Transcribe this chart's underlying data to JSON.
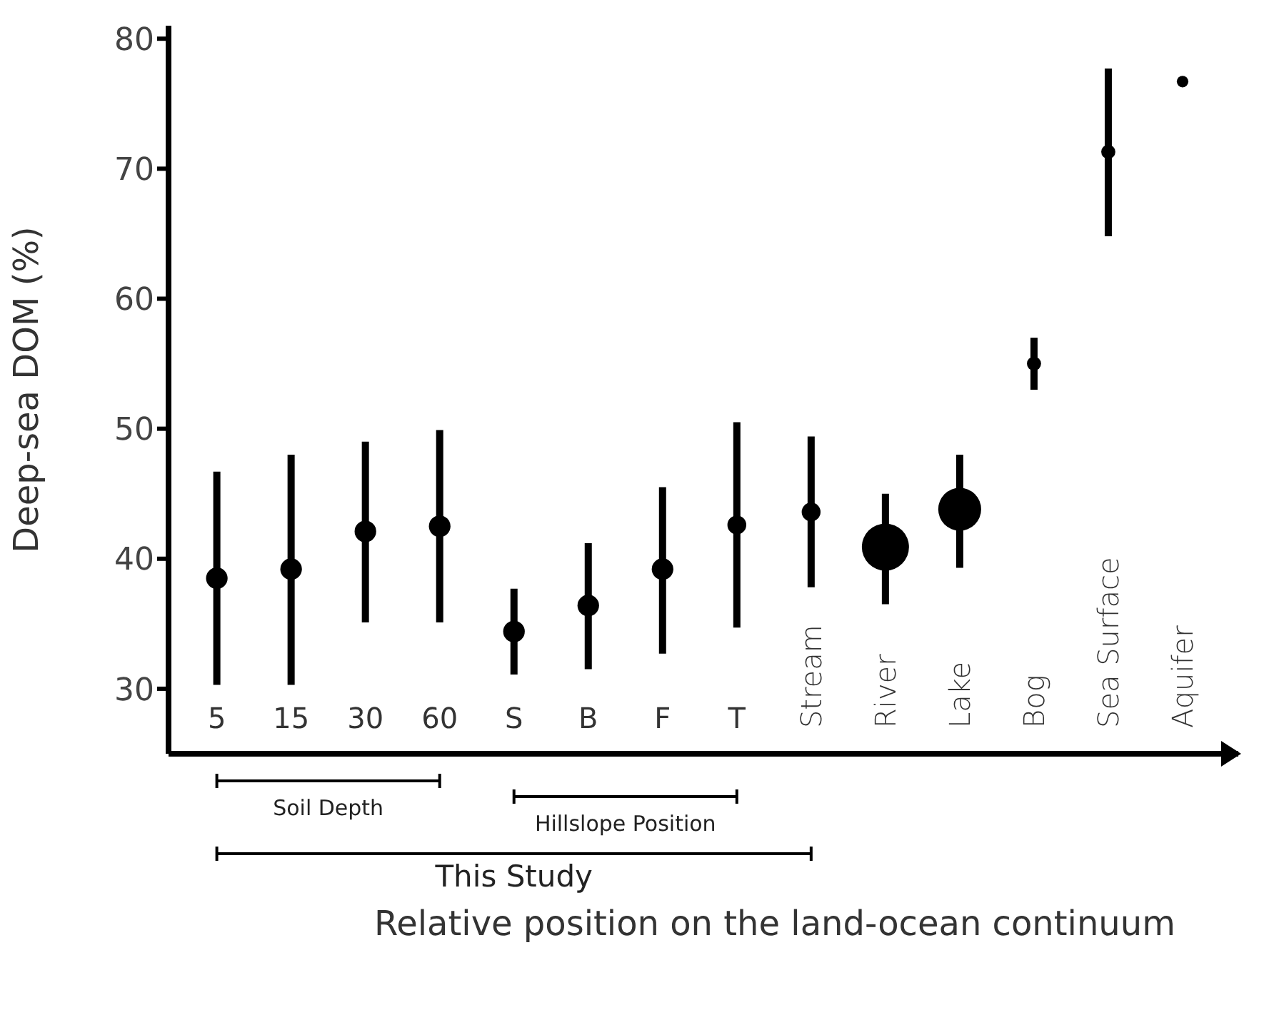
{
  "chart_data": {
    "type": "bubble",
    "ylabel": "Deep-sea DOM (%)",
    "xlabel": "Relative position on the land-ocean continuum",
    "categories": [
      "5",
      "15",
      "30",
      "60",
      "S",
      "B",
      "F",
      "T",
      "Stream",
      "River",
      "Lake",
      "Bog",
      "Sea Surface",
      "Aquifer"
    ],
    "values": [
      38.5,
      39.2,
      42.1,
      42.5,
      34.4,
      36.4,
      39.2,
      42.6,
      43.6,
      40.9,
      43.8,
      55.0,
      71.3,
      76.7
    ],
    "errors": [
      [
        30.3,
        46.7
      ],
      [
        30.3,
        48.0
      ],
      [
        35.1,
        49.0
      ],
      [
        35.1,
        49.9
      ],
      [
        31.1,
        37.7
      ],
      [
        31.5,
        41.2
      ],
      [
        32.7,
        45.5
      ],
      [
        34.7,
        50.5
      ],
      [
        37.8,
        49.4
      ],
      [
        36.5,
        45.0
      ],
      [
        39.3,
        48.0
      ],
      [
        53.0,
        57.0
      ],
      [
        64.8,
        77.7
      ],
      null
    ],
    "sizes": [
      0.21,
      0.21,
      0.21,
      0.21,
      0.21,
      0.21,
      0.21,
      0.16,
      0.16,
      1,
      0.83,
      0.09,
      0.09,
      0.06
    ],
    "color": "#000000",
    "ylim": [
      25,
      81
    ],
    "yticks": [
      30,
      40,
      50,
      60,
      70,
      80
    ],
    "annotations": [
      "Soil Depth",
      "Hillslope Position",
      "This Study"
    ]
  }
}
